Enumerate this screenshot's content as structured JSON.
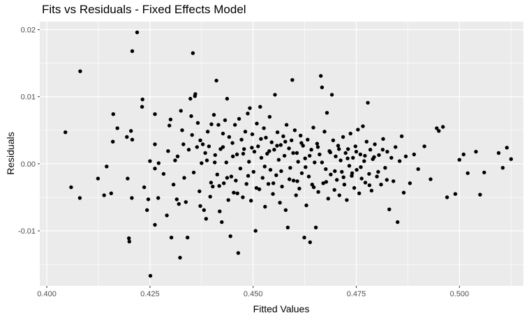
{
  "chart_data": {
    "type": "scatter",
    "title": "Fits vs Residuals - Fixed Effects Model",
    "xlabel": "Fitted Values",
    "ylabel": "Residuals",
    "xlim": [
      0.3983,
      0.5155
    ],
    "ylim": [
      -0.0182,
      0.0212
    ],
    "xticks": [
      0.4,
      0.425,
      0.45,
      0.475,
      0.5
    ],
    "xtick_labels": [
      "0.400",
      "0.425",
      "0.450",
      "0.475",
      "0.500"
    ],
    "yticks": [
      -0.01,
      0.0,
      0.01,
      0.02
    ],
    "ytick_labels": [
      "-0.01",
      "0.00",
      "0.01",
      "0.02"
    ],
    "grid": true,
    "legend": "none",
    "colors": {
      "panel": "#ebebeb",
      "grid": "#ffffff",
      "point": "#000000"
    },
    "points": [
      [
        0.4045,
        0.0047
      ],
      [
        0.4059,
        -0.0035
      ],
      [
        0.4081,
        0.0138
      ],
      [
        0.408,
        -0.0051
      ],
      [
        0.4124,
        -0.0022
      ],
      [
        0.4139,
        -0.0047
      ],
      [
        0.4145,
        -0.0004
      ],
      [
        0.4156,
        -0.0044
      ],
      [
        0.4161,
        0.0074
      ],
      [
        0.416,
        0.0033
      ],
      [
        0.4171,
        0.0053
      ],
      [
        0.4194,
        0.004
      ],
      [
        0.4204,
        0.0049
      ],
      [
        0.4207,
        0.0036
      ],
      [
        0.4196,
        -0.0022
      ],
      [
        0.4206,
        -0.0051
      ],
      [
        0.4219,
        0.0196
      ],
      [
        0.4207,
        0.0168
      ],
      [
        0.4232,
        0.0096
      ],
      [
        0.4231,
        0.0085
      ],
      [
        0.4199,
        -0.0111
      ],
      [
        0.42,
        -0.0116
      ],
      [
        0.4236,
        -0.0035
      ],
      [
        0.4243,
        -0.0069
      ],
      [
        0.4246,
        -0.0053
      ],
      [
        0.425,
        0.0004
      ],
      [
        0.4262,
        0.0074
      ],
      [
        0.4262,
        0.0029
      ],
      [
        0.4251,
        -0.0167
      ],
      [
        0.4262,
        -0.0091
      ],
      [
        0.4271,
        0.0001
      ],
      [
        0.4262,
        -0.0007
      ],
      [
        0.427,
        -0.0051
      ],
      [
        0.4283,
        -0.0015
      ],
      [
        0.4291,
        -0.0077
      ],
      [
        0.4294,
        0.0019
      ],
      [
        0.4297,
        0.0057
      ],
      [
        0.43,
        0.0066
      ],
      [
        0.4302,
        -0.011
      ],
      [
        0.4307,
        -0.0031
      ],
      [
        0.4311,
        0.0005
      ],
      [
        0.4317,
        0.0011
      ],
      [
        0.4315,
        -0.0053
      ],
      [
        0.432,
        -0.006
      ],
      [
        0.4323,
        -0.014
      ],
      [
        0.4325,
        0.0079
      ],
      [
        0.4328,
        0.005
      ],
      [
        0.4331,
        0.0029
      ],
      [
        0.4333,
        -0.0021
      ],
      [
        0.4337,
        -0.0057
      ],
      [
        0.4341,
        -0.011
      ],
      [
        0.4344,
        0.0021
      ],
      [
        0.4348,
        0.0097
      ],
      [
        0.435,
        0.0071
      ],
      [
        0.4352,
        0.0043
      ],
      [
        0.4354,
        0.0165
      ],
      [
        0.4356,
        -0.0013
      ],
      [
        0.4359,
        0.0101
      ],
      [
        0.436,
        0.0104
      ],
      [
        0.4364,
        0.0025
      ],
      [
        0.4366,
        0.0061
      ],
      [
        0.437,
        -0.0041
      ],
      [
        0.4372,
        -0.0063
      ],
      [
        0.4375,
        0.0001
      ],
      [
        0.4378,
        0.0029
      ],
      [
        0.4381,
        -0.0069
      ],
      [
        0.4384,
        0.0016
      ],
      [
        0.4386,
        -0.0082
      ],
      [
        0.439,
        0.0048
      ],
      [
        0.4393,
        0.0026
      ],
      [
        0.4396,
        -0.0049
      ],
      [
        0.4399,
        0.0059
      ],
      [
        0.4402,
        -0.0034
      ],
      [
        0.4405,
        0.0073
      ],
      [
        0.4408,
        0.0013
      ],
      [
        0.4411,
        0.0124
      ],
      [
        0.4413,
        -0.0016
      ],
      [
        0.4416,
        0.0058
      ],
      [
        0.4419,
        -0.0071
      ],
      [
        0.4421,
        0.0022
      ],
      [
        0.4424,
        -0.0087
      ],
      [
        0.4427,
        0.0045
      ],
      [
        0.4429,
        -0.0029
      ],
      [
        0.4432,
        0.0065
      ],
      [
        0.4435,
        0.0002
      ],
      [
        0.4437,
        0.0097
      ],
      [
        0.444,
        -0.0054
      ],
      [
        0.4442,
        0.004
      ],
      [
        0.4445,
        -0.0108
      ],
      [
        0.4447,
        -0.0019
      ],
      [
        0.445,
        0.0031
      ],
      [
        0.4453,
        -0.0043
      ],
      [
        0.4456,
        0.0058
      ],
      [
        0.4458,
        -0.0025
      ],
      [
        0.4461,
        0.0014
      ],
      [
        0.4464,
        -0.0133
      ],
      [
        0.4466,
        0.0067
      ],
      [
        0.4469,
        -0.0007
      ],
      [
        0.4472,
        0.0036
      ],
      [
        0.4475,
        -0.005
      ],
      [
        0.4478,
        0.0022
      ],
      [
        0.4481,
        0.0048
      ],
      [
        0.4484,
        -0.003
      ],
      [
        0.4487,
        0.0075
      ],
      [
        0.449,
        0.0003
      ],
      [
        0.4492,
        0.0083
      ],
      [
        0.4495,
        -0.0055
      ],
      [
        0.4498,
        0.0044
      ],
      [
        0.4501,
        -0.0012
      ],
      [
        0.4503,
        0.0018
      ],
      [
        0.4506,
        -0.01
      ],
      [
        0.4509,
        0.006
      ],
      [
        0.4512,
        0.0026
      ],
      [
        0.4515,
        -0.0038
      ],
      [
        0.4517,
        0.0085
      ],
      [
        0.452,
        0.0009
      ],
      [
        0.4523,
        -0.0021
      ],
      [
        0.4526,
        0.0053
      ],
      [
        0.4529,
        -0.0064
      ],
      [
        0.4531,
        0.0039
      ],
      [
        0.4534,
        0.0015
      ],
      [
        0.4537,
        -0.003
      ],
      [
        0.454,
        0.007
      ],
      [
        0.4542,
        -0.0009
      ],
      [
        0.4545,
        0.0032
      ],
      [
        0.4548,
        -0.0045
      ],
      [
        0.4551,
        0.0021
      ],
      [
        0.4553,
        0.0103
      ],
      [
        0.4556,
        -0.0017
      ],
      [
        0.4559,
        0.0047
      ],
      [
        0.4562,
        0.0006
      ],
      [
        0.4565,
        -0.0058
      ],
      [
        0.4567,
        0.0028
      ],
      [
        0.457,
        -0.0034
      ],
      [
        0.4573,
        0.0041
      ],
      [
        0.4576,
        0.0012
      ],
      [
        0.4579,
        -0.0069
      ],
      [
        0.4581,
        0.0058
      ],
      [
        0.4584,
        -0.0095
      ],
      [
        0.4587,
        0.0023
      ],
      [
        0.459,
        -0.0006
      ],
      [
        0.4593,
        0.0035
      ],
      [
        0.4595,
        0.0125
      ],
      [
        0.4598,
        -0.0025
      ],
      [
        0.4601,
        0.005
      ],
      [
        0.4604,
        -0.0047
      ],
      [
        0.4606,
        0.0016
      ],
      [
        0.4609,
        0.0003
      ],
      [
        0.4612,
        -0.0037
      ],
      [
        0.4615,
        0.0042
      ],
      [
        0.4618,
        -0.0014
      ],
      [
        0.4621,
        0.0027
      ],
      [
        0.4624,
        -0.011
      ],
      [
        0.4626,
        0.0008
      ],
      [
        0.4629,
        -0.0062
      ],
      [
        0.4632,
        0.0036
      ],
      [
        0.4635,
        -0.0019
      ],
      [
        0.4638,
        -0.0117
      ],
      [
        0.4641,
        0.0021
      ],
      [
        0.4643,
        -0.0031
      ],
      [
        0.4646,
        0.0054
      ],
      [
        0.4649,
        0.0002
      ],
      [
        0.4652,
        -0.0095
      ],
      [
        0.4655,
        0.003
      ],
      [
        0.4658,
        -0.0042
      ],
      [
        0.4661,
        0.0014
      ],
      [
        0.4664,
        0.0131
      ],
      [
        0.4667,
        0.0114
      ],
      [
        0.467,
        -0.0029
      ],
      [
        0.4673,
        0.0048
      ],
      [
        0.4676,
        -0.0008
      ],
      [
        0.4679,
        0.0076
      ],
      [
        0.4682,
        -0.0052
      ],
      [
        0.4685,
        0.0019
      ],
      [
        0.4688,
        -0.0016
      ],
      [
        0.4691,
        0.0103
      ],
      [
        0.4694,
        0.0035
      ],
      [
        0.4697,
        -0.0039
      ],
      [
        0.47,
        0.0011
      ],
      [
        0.4703,
        -0.0024
      ],
      [
        0.4706,
        0.0027
      ],
      [
        0.4709,
        -0.0047
      ],
      [
        0.4712,
        0.0005
      ],
      [
        0.4715,
        -0.0012
      ],
      [
        0.4718,
        0.004
      ],
      [
        0.4721,
        -0.0031
      ],
      [
        0.4724,
        0.0016
      ],
      [
        0.4727,
        -0.0054
      ],
      [
        0.473,
        0.0022
      ],
      [
        0.4733,
        -0.0003
      ],
      [
        0.4736,
        0.0045
      ],
      [
        0.4739,
        -0.0018
      ],
      [
        0.4742,
        0.0009
      ],
      [
        0.4745,
        -0.0036
      ],
      [
        0.4748,
        0.0026
      ],
      [
        0.4751,
        -0.0009
      ],
      [
        0.4754,
        0.0051
      ],
      [
        0.4757,
        -0.0044
      ],
      [
        0.476,
        0.0014
      ],
      [
        0.4763,
        -0.0022
      ],
      [
        0.4766,
        0.0056
      ],
      [
        0.4769,
        0.0004
      ],
      [
        0.4772,
        -0.0028
      ],
      [
        0.4775,
        0.0033
      ],
      [
        0.4778,
        0.0091
      ],
      [
        0.4781,
        -0.0015
      ],
      [
        0.4784,
        0.0021
      ],
      [
        0.4787,
        -0.004
      ],
      [
        0.479,
        0.0007
      ],
      [
        0.4795,
        0.0029
      ],
      [
        0.48,
        -0.0019
      ],
      [
        0.4805,
        0.0013
      ],
      [
        0.481,
        -0.0031
      ],
      [
        0.4815,
        0.0037
      ],
      [
        0.482,
        -0.0006
      ],
      [
        0.4825,
        0.0018
      ],
      [
        0.483,
        -0.0068
      ],
      [
        0.4835,
        0.0009
      ],
      [
        0.484,
        -0.0026
      ],
      [
        0.4845,
        0.0025
      ],
      [
        0.485,
        -0.0087
      ],
      [
        0.4855,
        0.0004
      ],
      [
        0.486,
        0.0041
      ],
      [
        0.4865,
        -0.0043
      ],
      [
        0.487,
        0.0011
      ],
      [
        0.488,
        -0.0029
      ],
      [
        0.489,
        0.0014
      ],
      [
        0.49,
        -0.0008
      ],
      [
        0.4915,
        0.0026
      ],
      [
        0.493,
        -0.0023
      ],
      [
        0.4945,
        0.0053
      ],
      [
        0.495,
        0.0049
      ],
      [
        0.496,
        0.0055
      ],
      [
        0.497,
        -0.005
      ],
      [
        0.499,
        -0.0045
      ],
      [
        0.5,
        0.0006
      ],
      [
        0.501,
        0.0014
      ],
      [
        0.502,
        -0.0014
      ],
      [
        0.504,
        0.0018
      ],
      [
        0.505,
        -0.0046
      ],
      [
        0.506,
        -0.0013
      ],
      [
        0.5095,
        0.0016
      ],
      [
        0.5105,
        -0.0006
      ],
      [
        0.5115,
        0.0024
      ],
      [
        0.5125,
        0.0007
      ],
      [
        0.4372,
        0.0035
      ],
      [
        0.4388,
        0.0005
      ],
      [
        0.4398,
        -0.0028
      ],
      [
        0.4407,
        0.0002
      ],
      [
        0.4418,
        -0.0033
      ],
      [
        0.4427,
        0.0025
      ],
      [
        0.4437,
        -0.0021
      ],
      [
        0.4451,
        0.0011
      ],
      [
        0.4462,
        -0.0044
      ],
      [
        0.4476,
        0.0015
      ],
      [
        0.4488,
        -0.0018
      ],
      [
        0.4497,
        0.0024
      ],
      [
        0.4508,
        -0.0036
      ],
      [
        0.4519,
        0.0037
      ],
      [
        0.4528,
        -0.0004
      ],
      [
        0.4539,
        0.0019
      ],
      [
        0.4549,
        -0.0029
      ],
      [
        0.4558,
        0.0027
      ],
      [
        0.4568,
        -0.0011
      ],
      [
        0.4578,
        0.0033
      ],
      [
        0.4588,
        -0.0023
      ],
      [
        0.4597,
        0.0016
      ],
      [
        0.4607,
        -0.0026
      ],
      [
        0.4617,
        0.0031
      ],
      [
        0.4627,
        -0.0005
      ],
      [
        0.4637,
        0.0012
      ],
      [
        0.4647,
        -0.0035
      ],
      [
        0.4657,
        0.0025
      ],
      [
        0.4667,
        0.0002
      ],
      [
        0.4677,
        -0.0027
      ],
      [
        0.4687,
        0.0017
      ],
      [
        0.4698,
        -0.0011
      ],
      [
        0.4708,
        0.0022
      ],
      [
        0.4719,
        -0.002
      ],
      [
        0.4729,
        0.0008
      ],
      [
        0.474,
        -0.0014
      ],
      [
        0.475,
        0.0018
      ],
      [
        0.4761,
        -0.0005
      ],
      [
        0.4771,
        0.0012
      ],
      [
        0.4782,
        -0.0032
      ],
      [
        0.4793,
        0.001
      ],
      [
        0.4803,
        -0.0012
      ],
      [
        0.4814,
        0.0021
      ],
      [
        0.4824,
        -0.0024
      ]
    ]
  }
}
